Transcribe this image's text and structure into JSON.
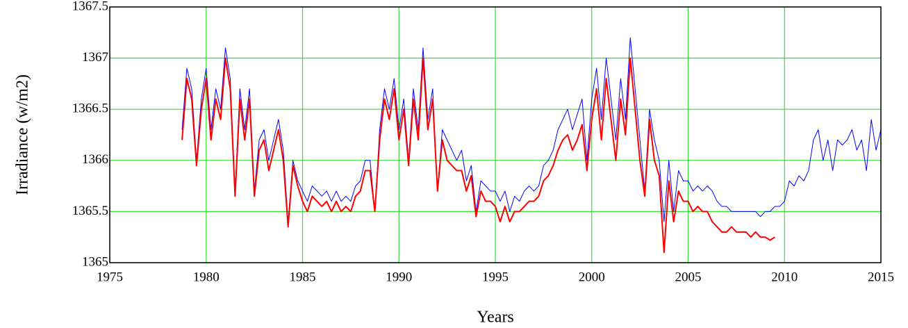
{
  "chart_data": {
    "type": "line",
    "x_label": "Years",
    "y_label": "Irradiance (w/m2)",
    "xlim": [
      1975,
      2015
    ],
    "xticks": [
      1975,
      1980,
      1985,
      1990,
      1995,
      2000,
      2005,
      2010,
      2015
    ],
    "ylim": [
      1365,
      1367.5
    ],
    "yticks": [
      1365,
      1365.5,
      1366,
      1366.5,
      1367,
      1367.5
    ],
    "grid": true,
    "grid_color": "#33e033",
    "x": [
      1978.75,
      1979,
      1979.25,
      1979.5,
      1979.75,
      1980,
      1980.25,
      1980.5,
      1980.75,
      1981,
      1981.25,
      1981.5,
      1981.75,
      1982,
      1982.25,
      1982.5,
      1982.75,
      1983,
      1983.25,
      1983.5,
      1983.75,
      1984,
      1984.25,
      1984.5,
      1984.75,
      1985,
      1985.25,
      1985.5,
      1985.75,
      1986,
      1986.25,
      1986.5,
      1986.75,
      1987,
      1987.25,
      1987.5,
      1987.75,
      1988,
      1988.25,
      1988.5,
      1988.75,
      1989,
      1989.25,
      1989.5,
      1989.75,
      1990,
      1990.25,
      1990.5,
      1990.75,
      1991,
      1991.25,
      1991.5,
      1991.75,
      1992,
      1992.25,
      1992.5,
      1992.75,
      1993,
      1993.25,
      1993.5,
      1993.75,
      1994,
      1994.25,
      1994.5,
      1994.75,
      1995,
      1995.25,
      1995.5,
      1995.75,
      1996,
      1996.25,
      1996.5,
      1996.75,
      1997,
      1997.25,
      1997.5,
      1997.75,
      1998,
      1998.25,
      1998.5,
      1998.75,
      1999,
      1999.25,
      1999.5,
      1999.75,
      2000,
      2000.25,
      2000.5,
      2000.75,
      2001,
      2001.25,
      2001.5,
      2001.75,
      2002,
      2002.25,
      2002.5,
      2002.75,
      2003,
      2003.25,
      2003.5,
      2003.75,
      2004,
      2004.25,
      2004.5,
      2004.75,
      2005,
      2005.25,
      2005.5,
      2005.75,
      2006,
      2006.25,
      2006.5,
      2006.75,
      2007,
      2007.25,
      2007.5,
      2007.75,
      2008,
      2008.25,
      2008.5,
      2008.75,
      2009,
      2009.25,
      2009.5,
      2009.75,
      2010,
      2010.25,
      2010.5,
      2010.75,
      2011,
      2011.25,
      2011.5,
      2011.75,
      2012,
      2012.25,
      2012.5,
      2012.75,
      2013,
      2013.25,
      2013.5,
      2013.75,
      2014,
      2014.25,
      2014.5,
      2014.75,
      2015
    ],
    "series": [
      {
        "color": "#0000ff",
        "width": 1,
        "values": [
          1366.3,
          1366.9,
          1366.7,
          1366.0,
          1366.6,
          1366.9,
          1366.3,
          1366.7,
          1366.5,
          1367.1,
          1366.8,
          1365.7,
          1366.7,
          1366.3,
          1366.7,
          1365.7,
          1366.2,
          1366.3,
          1366.0,
          1366.2,
          1366.4,
          1366.1,
          1365.4,
          1366.0,
          1365.8,
          1365.7,
          1365.6,
          1365.75,
          1365.7,
          1365.65,
          1365.7,
          1365.6,
          1365.7,
          1365.6,
          1365.65,
          1365.6,
          1365.75,
          1365.8,
          1366.0,
          1366.0,
          1365.5,
          1366.3,
          1366.7,
          1366.5,
          1366.8,
          1366.3,
          1366.6,
          1366.0,
          1366.7,
          1366.3,
          1367.1,
          1366.4,
          1366.7,
          1365.7,
          1366.3,
          1366.2,
          1366.1,
          1366.0,
          1366.1,
          1365.8,
          1365.95,
          1365.5,
          1365.8,
          1365.75,
          1365.7,
          1365.7,
          1365.6,
          1365.7,
          1365.5,
          1365.65,
          1365.6,
          1365.7,
          1365.75,
          1365.7,
          1365.75,
          1365.95,
          1366.0,
          1366.1,
          1366.3,
          1366.4,
          1366.5,
          1366.3,
          1366.45,
          1366.6,
          1366.0,
          1366.6,
          1366.9,
          1366.4,
          1367.0,
          1366.6,
          1366.2,
          1366.8,
          1366.4,
          1367.2,
          1366.7,
          1366.2,
          1365.7,
          1366.5,
          1366.2,
          1366.0,
          1365.4,
          1366.0,
          1365.5,
          1365.9,
          1365.8,
          1365.8,
          1365.7,
          1365.75,
          1365.7,
          1365.75,
          1365.7,
          1365.6,
          1365.55,
          1365.55,
          1365.5,
          1365.5,
          1365.5,
          1365.5,
          1365.5,
          1365.5,
          1365.45,
          1365.5,
          1365.5,
          1365.55,
          1365.55,
          1365.6,
          1365.8,
          1365.75,
          1365.85,
          1365.8,
          1365.9,
          1366.2,
          1366.3,
          1366.0,
          1366.2,
          1365.9,
          1366.2,
          1366.15,
          1366.2,
          1366.3,
          1366.1,
          1366.2,
          1365.9,
          1366.4,
          1366.1,
          1366.3
        ]
      },
      {
        "color": "#ff0000",
        "width": 2,
        "values": [
          1366.2,
          1366.8,
          1366.6,
          1365.95,
          1366.5,
          1366.8,
          1366.2,
          1366.6,
          1366.4,
          1367.0,
          1366.7,
          1365.65,
          1366.6,
          1366.2,
          1366.6,
          1365.65,
          1366.1,
          1366.2,
          1365.9,
          1366.1,
          1366.3,
          1366.0,
          1365.35,
          1365.95,
          1365.75,
          1365.6,
          1365.5,
          1365.65,
          1365.6,
          1365.55,
          1365.6,
          1365.5,
          1365.6,
          1365.5,
          1365.55,
          1365.5,
          1365.65,
          1365.7,
          1365.9,
          1365.9,
          1365.5,
          1366.2,
          1366.6,
          1366.4,
          1366.7,
          1366.2,
          1366.5,
          1365.95,
          1366.6,
          1366.2,
          1367.0,
          1366.3,
          1366.6,
          1365.7,
          1366.2,
          1366.0,
          1365.95,
          1365.9,
          1365.9,
          1365.7,
          1365.85,
          1365.45,
          1365.7,
          1365.6,
          1365.6,
          1365.55,
          1365.4,
          1365.55,
          1365.4,
          1365.5,
          1365.5,
          1365.55,
          1365.6,
          1365.6,
          1365.65,
          1365.8,
          1365.85,
          1365.95,
          1366.1,
          1366.2,
          1366.25,
          1366.1,
          1366.2,
          1366.35,
          1365.9,
          1366.4,
          1366.7,
          1366.2,
          1366.8,
          1366.4,
          1366.0,
          1366.6,
          1366.25,
          1367.0,
          1366.5,
          1366.0,
          1365.65,
          1366.4,
          1366.0,
          1365.85,
          1365.1,
          1365.8,
          1365.4,
          1365.7,
          1365.6,
          1365.6,
          1365.5,
          1365.55,
          1365.5,
          1365.5,
          1365.4,
          1365.35,
          1365.3,
          1365.3,
          1365.35,
          1365.3,
          1365.3,
          1365.3,
          1365.25,
          1365.3,
          1365.25,
          1365.25,
          1365.22,
          1365.25,
          null,
          null,
          null,
          null,
          null,
          null,
          null,
          null,
          null,
          null,
          null,
          null,
          null,
          null,
          null,
          null,
          null,
          null,
          null,
          null,
          null,
          null
        ]
      }
    ]
  }
}
